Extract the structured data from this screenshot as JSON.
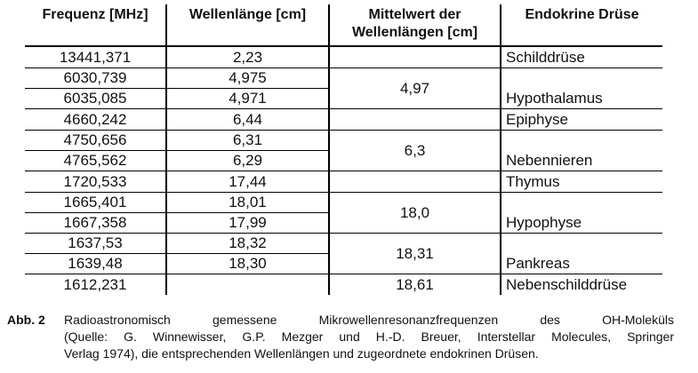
{
  "table": {
    "headers": [
      "Frequenz [MHz]",
      "Wellenlänge [cm]",
      "Mittelwert der Wellenlängen [cm]",
      "Endokrine Drüse"
    ],
    "rows": [
      {
        "frequenz": "13441,371",
        "wellenlaenge": "2,23",
        "mittelwert": "",
        "druese": "Schilddrüse"
      },
      {
        "frequenz": "6030,739",
        "wellenlaenge": "4,975",
        "mittelwert": "4,97",
        "druese": "Hypothalamus"
      },
      {
        "frequenz": "6035,085",
        "wellenlaenge": "4,971"
      },
      {
        "frequenz": "4660,242",
        "wellenlaenge": "6,44",
        "mittelwert": "",
        "druese": "Epiphyse"
      },
      {
        "frequenz": "4750,656",
        "wellenlaenge": "6,31",
        "mittelwert": "6,3",
        "druese": "Nebennieren"
      },
      {
        "frequenz": "4765,562",
        "wellenlaenge": "6,29"
      },
      {
        "frequenz": "1720,533",
        "wellenlaenge": "17,44",
        "mittelwert": "",
        "druese": "Thymus"
      },
      {
        "frequenz": "1665,401",
        "wellenlaenge": "18,01",
        "mittelwert": "18,0",
        "druese": "Hypophyse"
      },
      {
        "frequenz": "1667,358",
        "wellenlaenge": "17,99"
      },
      {
        "frequenz": "1637,53",
        "wellenlaenge": "18,32",
        "mittelwert": "18,31",
        "druese": "Pankreas"
      },
      {
        "frequenz": "1639,48",
        "wellenlaenge": "18,30"
      },
      {
        "frequenz": "1612,231",
        "wellenlaenge": "",
        "mittelwert": "18,61",
        "druese": "Nebenschilddrüse"
      }
    ]
  },
  "caption": {
    "label": "Abb. 2",
    "lines": [
      "Radioastronomisch gemessene Mikrowellenresonanzfrequenzen des OH-Moleküls",
      "(Quelle: G. Winnewisser, G.P. Mezger und H.-D. Breuer, Interstellar Molecules, Springer",
      "Verlag 1974), die entsprechenden Wellenlängen und zugeordnete endokrinen Drüsen."
    ]
  },
  "colors": {
    "text": "#111111",
    "rule": "#000000",
    "background": "#ffffff"
  }
}
